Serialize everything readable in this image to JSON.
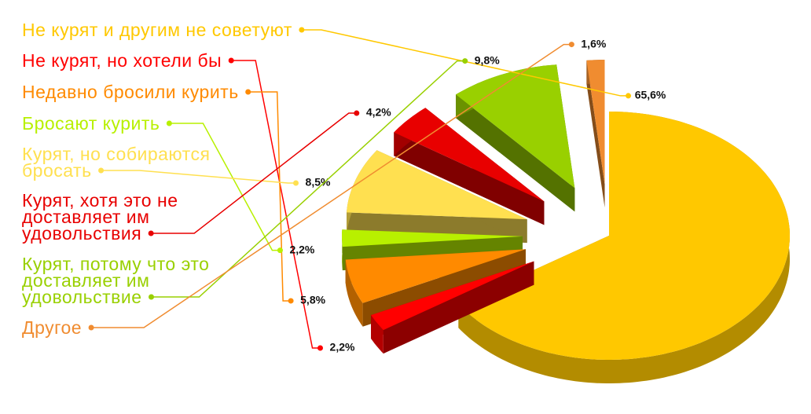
{
  "chart_data": {
    "type": "pie",
    "categories": [
      "Не курят и другим не советуют",
      "Не курят, но хотели бы",
      "Недавно бросили курить",
      "Бросают курить",
      "Курят, но собираются бросать",
      "Курят, хотя это не доставляет им удовольствия",
      "Курят, потому что это доставляет им удовольствие",
      "Другое"
    ],
    "values": [
      65.6,
      2.2,
      5.8,
      2.2,
      8.5,
      4.2,
      9.8,
      1.6
    ],
    "value_labels": [
      "65,6%",
      "2,2%",
      "5,8%",
      "2,2%",
      "8,5%",
      "4,2%",
      "9,8%",
      "1,6%"
    ],
    "colors": [
      "#FFC800",
      "#FF0000",
      "#FF8A00",
      "#B8F000",
      "#FFE050",
      "#E80000",
      "#99D000",
      "#F08C30"
    ]
  }
}
